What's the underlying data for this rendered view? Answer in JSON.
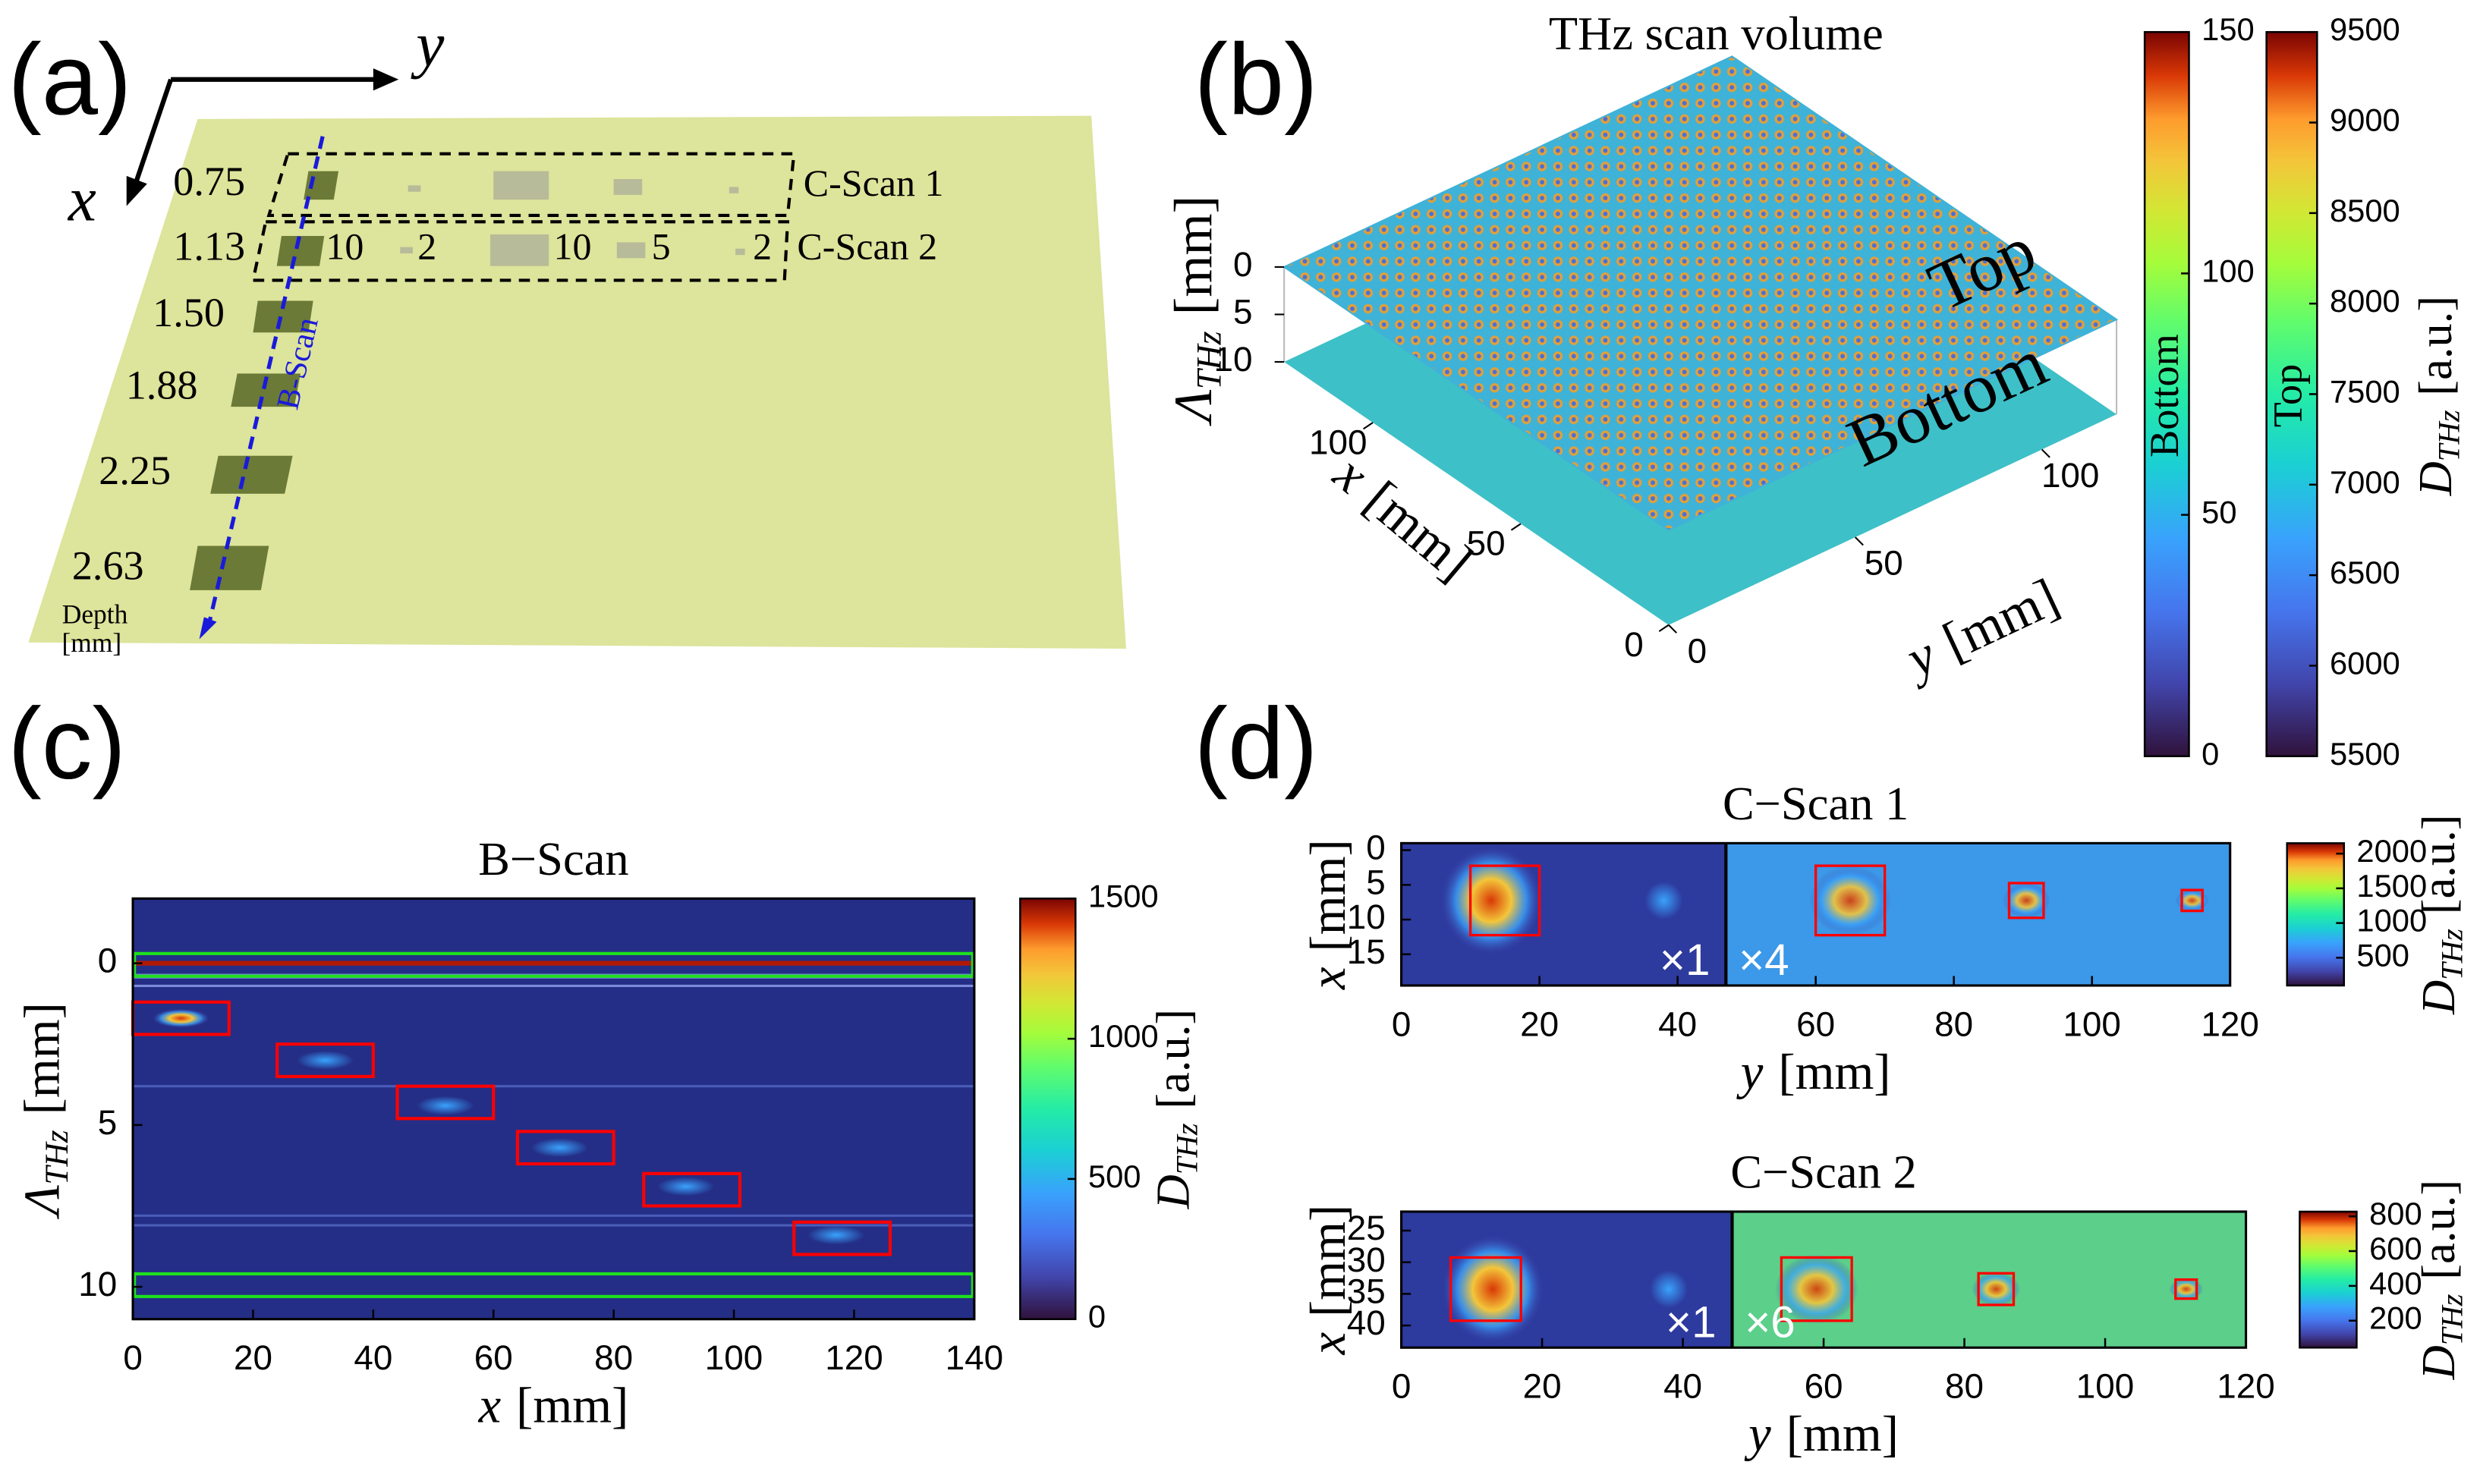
{
  "panel_labels": [
    "(a)",
    "(b)",
    "(c)",
    "(d)"
  ],
  "diagram": {
    "axis_x": "x",
    "axis_y": "y",
    "depths": [
      "0.75",
      "1.13",
      "1.50",
      "1.88",
      "2.25",
      "2.63"
    ],
    "depth_title": "Depth",
    "depth_unit": "[mm]",
    "cscan_labels": [
      "C-Scan 1",
      "C-Scan 2"
    ],
    "sizes": [
      "10",
      "2",
      "10",
      "5",
      "2"
    ],
    "bscan_label": "B-Scan"
  },
  "chart_data": [
    {
      "type": "surface3d",
      "title": "THz scan volume",
      "layers": [
        "Top",
        "Bottom"
      ],
      "xlabel": {
        "main": "x",
        "unit": "[mm]"
      },
      "ylabel": {
        "main": "y",
        "unit": "[mm]"
      },
      "zlabel": {
        "main": "Λ",
        "sub": "THz",
        "unit": "[mm]"
      },
      "xlim": [
        0,
        130
      ],
      "ylim": [
        0,
        120
      ],
      "zlim": [
        0,
        10
      ],
      "xticks": [
        0,
        50,
        100
      ],
      "yticks": [
        0,
        50,
        100
      ],
      "zticks": [
        0,
        5,
        10
      ],
      "colorbars": [
        {
          "label": "Bottom",
          "lim": [
            0,
            150
          ],
          "ticks": [
            0,
            50,
            100,
            150
          ]
        },
        {
          "label": "Top",
          "lim": [
            5500,
            9500
          ],
          "ticks": [
            5500,
            6000,
            6500,
            7000,
            7500,
            8000,
            8500,
            9000,
            9500
          ]
        }
      ],
      "colorbar_label": {
        "main": "D",
        "sub": "THz",
        "unit": "[a.u.]"
      }
    },
    {
      "type": "heatmap",
      "title": "B−Scan",
      "xlabel": {
        "main": "x",
        "unit": "[mm]"
      },
      "ylabel": {
        "main": "Λ",
        "sub": "THz",
        "unit": "[mm]"
      },
      "xlim": [
        0,
        140
      ],
      "ylim": [
        -2,
        11
      ],
      "xticks": [
        0,
        20,
        40,
        60,
        80,
        100,
        120,
        140
      ],
      "yticks": [
        0,
        5,
        10
      ],
      "colorbar": {
        "lim": [
          0,
          1500
        ],
        "ticks": [
          0,
          500,
          1000,
          1500
        ],
        "label": {
          "main": "D",
          "sub": "THz",
          "unit": "[a.u.]"
        }
      }
    },
    {
      "type": "heatmap",
      "title": "C−Scan 1",
      "xlabel": {
        "main": "y",
        "unit": "[mm]"
      },
      "ylabel": {
        "main": "x",
        "unit": "[mm]"
      },
      "xlim": [
        0,
        120
      ],
      "ylim": [
        -1,
        19.5
      ],
      "xticks": [
        0,
        20,
        40,
        60,
        80,
        100,
        120
      ],
      "yticks": [
        0,
        5,
        10,
        15
      ],
      "annotations": [
        "×1",
        "×4"
      ],
      "colorbar": {
        "lim": [
          100,
          2150
        ],
        "ticks": [
          500,
          1000,
          1500,
          2000
        ],
        "label": {
          "main": "D",
          "sub": "THz",
          "unit": "[a.u.]"
        }
      }
    },
    {
      "type": "heatmap",
      "title": "C−Scan 2",
      "xlabel": {
        "main": "y",
        "unit": "[mm]"
      },
      "ylabel": {
        "main": "x",
        "unit": "[mm]"
      },
      "xlim": [
        0,
        120
      ],
      "ylim": [
        22,
        43.5
      ],
      "xticks": [
        0,
        20,
        40,
        60,
        80,
        100,
        120
      ],
      "yticks": [
        25,
        30,
        35,
        40
      ],
      "annotations": [
        "×1",
        "×6"
      ],
      "colorbar": {
        "lim": [
          45,
          827
        ],
        "ticks": [
          200,
          400,
          600,
          800
        ],
        "label": {
          "main": "D",
          "sub": "THz",
          "unit": "[a.u.]"
        }
      }
    }
  ]
}
